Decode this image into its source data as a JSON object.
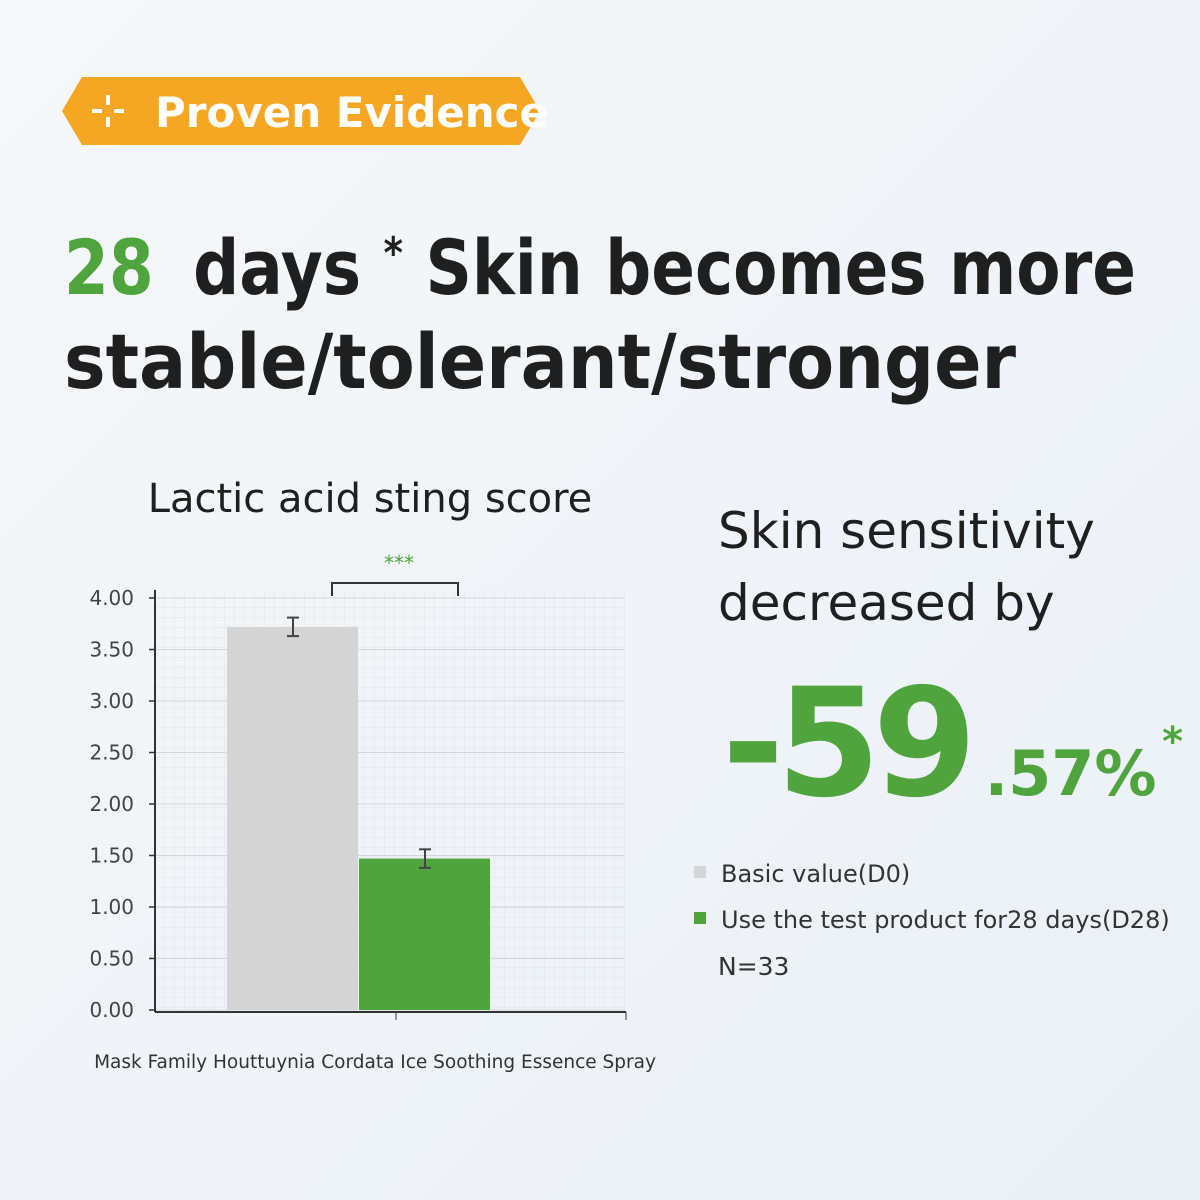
{
  "badge": {
    "text": "Proven Evidence"
  },
  "headline": {
    "highlight": "28",
    "days": "days",
    "footnote_mark": "*",
    "line1_end": "Skin becomes more",
    "line2": "stable/tolerant/stronger"
  },
  "stat": {
    "line1": "Skin sensitivity",
    "line2": "decreased by",
    "integer": "-59",
    "decimal": ".57%",
    "footnote_mark": "*"
  },
  "chart_data": {
    "type": "bar",
    "title": "Lactic acid sting score",
    "categories": [
      "Mask Family Houttuynia Cordata Ice Soothing Essence Spray"
    ],
    "series": [
      {
        "name": "Basic value(D0)",
        "color": "#d4d4d4",
        "values": [
          3.72
        ],
        "errors": [
          0.09
        ]
      },
      {
        "name": "Use the test product for28 days(D28)",
        "color": "#4fa43d",
        "values": [
          1.47
        ],
        "errors": [
          0.09
        ]
      }
    ],
    "ylim": [
      0,
      4
    ],
    "yticks": [
      {
        "value": 0,
        "label": "0.00"
      },
      {
        "value": 0.5,
        "label": "0.50"
      },
      {
        "value": 1,
        "label": "1.00"
      },
      {
        "value": 1.5,
        "label": "1.50"
      },
      {
        "value": 2,
        "label": "2.00"
      },
      {
        "value": 2.5,
        "label": "2.50"
      },
      {
        "value": 3,
        "label": "3.00"
      },
      {
        "value": 3.5,
        "label": "3.50"
      },
      {
        "value": 4,
        "label": "4.00"
      }
    ],
    "grid": true,
    "significance": "***",
    "note": "N=33"
  }
}
